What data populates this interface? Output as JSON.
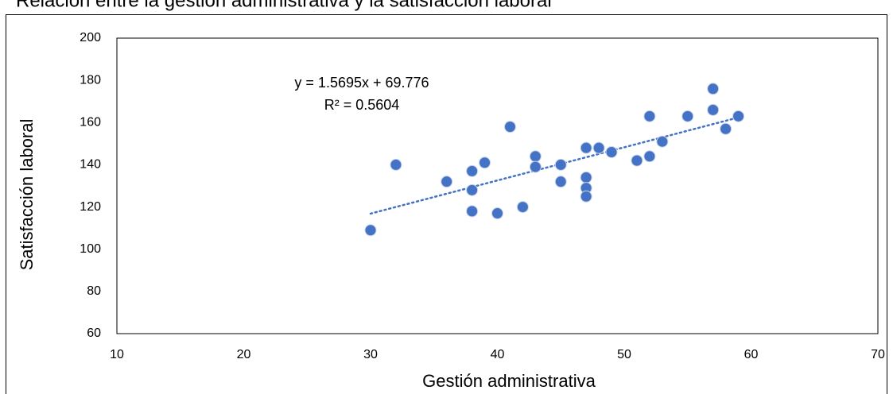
{
  "chart_data": {
    "type": "scatter",
    "title": "Relación entre la gestión administrativa y la satisfacción laboral",
    "x_label": "Gestión administrativa",
    "y_label": "Satisfacción laboral",
    "annotations": [
      "y = 1.5695x + 69.776",
      "R² = 0.5604"
    ],
    "x": [
      30,
      32,
      36,
      38,
      38,
      38,
      39,
      40,
      41,
      42,
      43,
      43,
      45,
      45,
      47,
      47,
      47,
      47,
      48,
      49,
      51,
      52,
      52,
      53,
      55,
      57,
      57,
      58,
      59
    ],
    "series": [
      {
        "color": "#4472c4",
        "values": [
          109,
          140,
          132,
          137,
          128,
          118,
          141,
          117,
          158,
          120,
          144,
          139,
          140,
          132,
          148,
          134,
          129,
          125,
          148,
          146,
          142,
          163,
          144,
          151,
          163,
          176,
          166,
          157,
          163
        ]
      }
    ],
    "xlim": [
      10,
      70
    ],
    "xticks": [
      10,
      20,
      30,
      40,
      50,
      60,
      70
    ],
    "ylim": [
      60,
      200
    ],
    "yticks": [
      60,
      80,
      100,
      120,
      140,
      160,
      180,
      200
    ],
    "trendline": true,
    "grid": false
  }
}
